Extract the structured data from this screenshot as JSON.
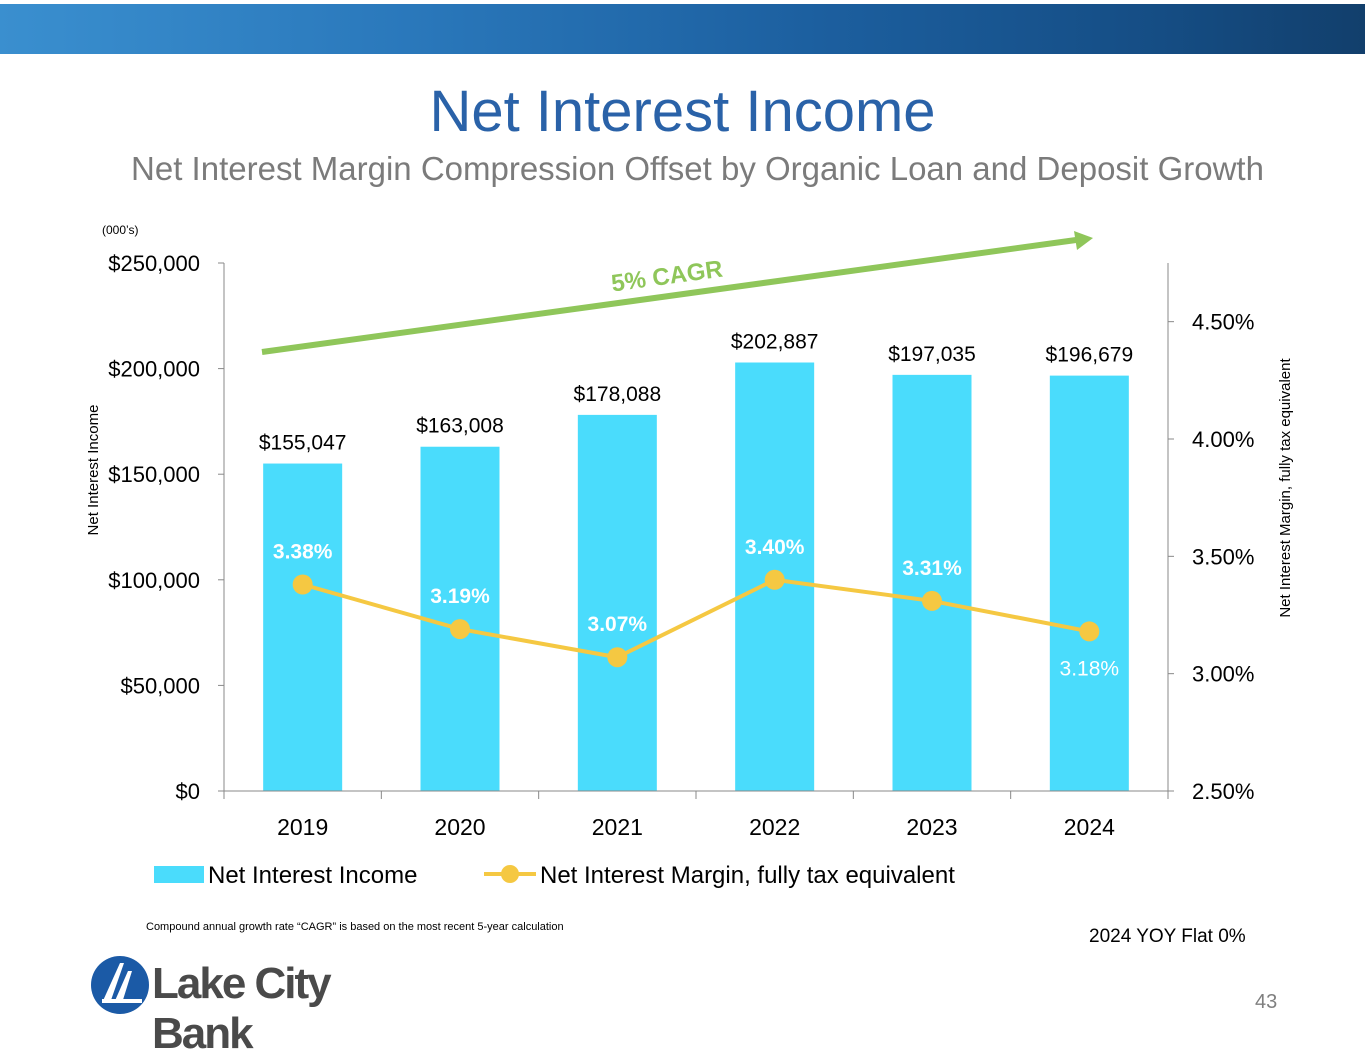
{
  "slide": {
    "title": "Net Interest Income",
    "subtitle": "Net Interest Margin Compression Offset by Organic Loan and Deposit Growth",
    "footnote": "Compound annual growth rate “CAGR” is based on the most recent 5-year calculation",
    "yoy_note": "2024 YOY Flat 0%",
    "page_number": "43",
    "logo_text": "Lake City Bank",
    "units_note": "(000’s)"
  },
  "colors": {
    "bar": "#4adcfc",
    "line": "#f5c842",
    "arrow": "#8fc65a",
    "cagr_text": "#8fc65a",
    "title": "#2a62a8"
  },
  "chart_data": {
    "type": "bar",
    "categories": [
      "2019",
      "2020",
      "2021",
      "2022",
      "2023",
      "2024"
    ],
    "series": [
      {
        "name": "Net Interest Income",
        "type": "bar",
        "axis": "left",
        "values": [
          155047,
          163008,
          178088,
          202887,
          197035,
          196679
        ],
        "labels": [
          "$155,047",
          "$163,008",
          "$178,088",
          "$202,887",
          "$197,035",
          "$196,679"
        ]
      },
      {
        "name": "Net Interest Margin, fully tax equivalent",
        "type": "line",
        "axis": "right",
        "values": [
          3.38,
          3.19,
          3.07,
          3.4,
          3.31,
          3.18
        ],
        "labels": [
          "3.38%",
          "3.19%",
          "3.07%",
          "3.40%",
          "3.31%",
          "3.18%"
        ]
      }
    ],
    "ylabel": "Net Interest Income",
    "y2label": "Net Interest Margin, fully tax equivalent",
    "ylim": [
      0,
      250000
    ],
    "y2lim": [
      2.5,
      4.75
    ],
    "yticks": [
      "$0",
      "$50,000",
      "$100,000",
      "$150,000",
      "$200,000",
      "$250,000"
    ],
    "y2ticks": [
      "2.50%",
      "3.00%",
      "3.50%",
      "4.00%",
      "4.50%"
    ],
    "annotation": "5% CAGR",
    "legend": [
      "Net Interest Income",
      "Net Interest Margin, fully tax equivalent"
    ]
  }
}
